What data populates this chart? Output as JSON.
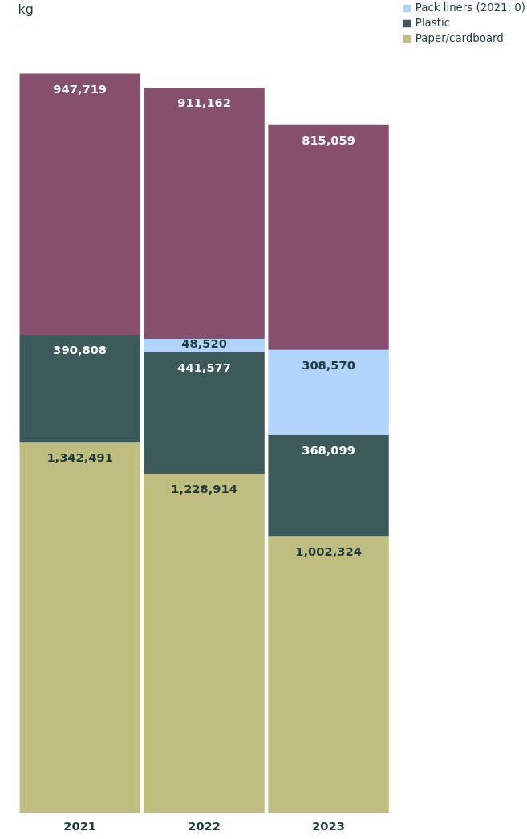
{
  "chart_data": {
    "type": "bar",
    "stacked": true,
    "ylabel": "kg",
    "categories": [
      "2021",
      "2022",
      "2023"
    ],
    "legend": "top right",
    "grid": false,
    "series": [
      {
        "name": "Paper/cardboard",
        "color": "#bfbd80",
        "values": [
          1342491,
          1228914,
          1002324
        ],
        "value_labels": [
          "1,342,491",
          "1,228,914",
          "1,002,324"
        ]
      },
      {
        "name": "Plastic",
        "color": "#3d5a5b",
        "values": [
          390808,
          441577,
          368099
        ],
        "value_labels": [
          "390,808",
          "441,577",
          "368,099"
        ]
      },
      {
        "name": "Pack liners (2021: 0)",
        "color": "#b0d4fc",
        "values": [
          0,
          48520,
          308570
        ],
        "value_labels": [
          null,
          "48,520",
          "308,570"
        ]
      },
      {
        "color": "#864f6e",
        "values": [
          947719,
          911162,
          815059
        ],
        "value_labels": [
          "947,719",
          "911,162",
          "815,059"
        ]
      }
    ]
  }
}
